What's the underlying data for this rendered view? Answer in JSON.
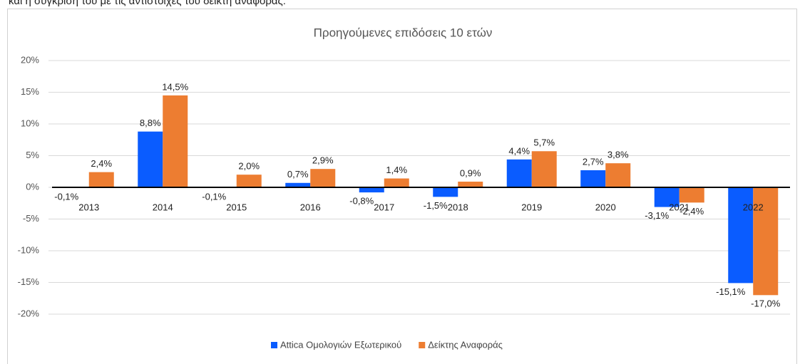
{
  "page_text": "και η σύγκριση του με τις αντίστοιχες του δείκτη αναφοράς:",
  "chart_data": {
    "type": "bar",
    "title": "Προηγούμενες επιδόσεις 10 ετών",
    "categories": [
      "2013",
      "2014",
      "2015",
      "2016",
      "2017",
      "2018",
      "2019",
      "2020",
      "2021",
      "2022"
    ],
    "series": [
      {
        "name": "Attica Ομολογιών Εξωτερικού",
        "color": "#0a5cff",
        "values": [
          -0.1,
          8.8,
          -0.1,
          0.7,
          -0.8,
          -1.5,
          4.4,
          2.7,
          -3.1,
          -15.1
        ],
        "value_labels": [
          "-0,1%",
          "8,8%",
          "-0,1%",
          "0,7%",
          "-0,8%",
          "-1,5%",
          "4,4%",
          "2,7%",
          "-3,1%",
          "-15,1%"
        ]
      },
      {
        "name": "Δείκτης Αναφοράς",
        "color": "#ed7d31",
        "values": [
          2.4,
          14.5,
          2.0,
          2.9,
          1.4,
          0.9,
          5.7,
          3.8,
          -2.4,
          -17.0
        ],
        "value_labels": [
          "2,4%",
          "14,5%",
          "2,0%",
          "2,9%",
          "1,4%",
          "0,9%",
          "5,7%",
          "3,8%",
          "-2,4%",
          "-17,0%"
        ]
      }
    ],
    "ylim": [
      -20,
      20
    ],
    "yticks": [
      {
        "value": -20,
        "label": "-20%"
      },
      {
        "value": -15,
        "label": "-15%"
      },
      {
        "value": -10,
        "label": "-10%"
      },
      {
        "value": -5,
        "label": "-5%"
      },
      {
        "value": 0,
        "label": "0%"
      },
      {
        "value": 5,
        "label": "5%"
      },
      {
        "value": 10,
        "label": "10%"
      },
      {
        "value": 15,
        "label": "15%"
      },
      {
        "value": 20,
        "label": "20%"
      }
    ],
    "grid": true,
    "legend": "bottom"
  }
}
